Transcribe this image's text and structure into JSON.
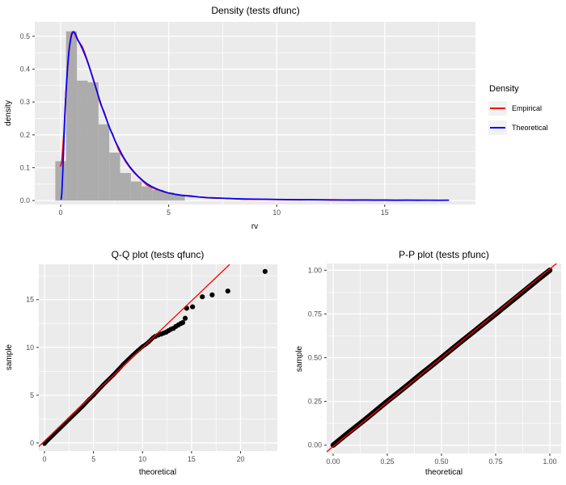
{
  "figure": {
    "background": "#FFFFFF",
    "panel_fill": "#EBEBEB",
    "grid_color": "#FFFFFF",
    "tick_text_color": "#4D4D4D",
    "tick_mark_color": "#333333",
    "histogram_fill": "#ACACAC",
    "point_color": "#000000",
    "empirical_color": "#FF0000",
    "theoretical_color": "#0000FF"
  },
  "legend": {
    "title": "Density",
    "entries": [
      {
        "label": "Empirical",
        "color": "#FF0000"
      },
      {
        "label": "Theoretical",
        "color": "#0000FF"
      }
    ]
  },
  "chart_data": [
    {
      "id": "density",
      "type": "area",
      "title": "Density (tests dfunc)",
      "xlabel": "rv",
      "ylabel": "density",
      "xlim": [
        -1.2,
        19.2
      ],
      "ylim": [
        -0.012,
        0.544
      ],
      "x_ticks": {
        "values": [
          0,
          5,
          10,
          15
        ],
        "labels": [
          "0",
          "5",
          "10",
          "15"
        ]
      },
      "y_ticks": {
        "values": [
          0.0,
          0.1,
          0.2,
          0.3,
          0.4,
          0.5
        ],
        "labels": [
          "0.0",
          "0.1",
          "0.2",
          "0.3",
          "0.4",
          "0.5"
        ]
      },
      "x_minor": [
        2.5,
        7.5,
        12.5,
        17.5
      ],
      "y_minor": [
        0.05,
        0.15,
        0.25,
        0.35,
        0.45
      ],
      "grid": true,
      "legend_position": "right",
      "histogram": {
        "bin_width": 0.5,
        "centers": [
          0,
          0.5,
          1.0,
          1.5,
          2.0,
          2.5,
          3.0,
          3.5,
          4.0,
          4.5,
          5.0,
          5.5
        ],
        "heights": [
          0.12,
          0.515,
          0.365,
          0.36,
          0.232,
          0.146,
          0.084,
          0.058,
          0.043,
          0.033,
          0.025,
          0.018
        ]
      },
      "series": [
        {
          "name": "Empirical",
          "color": "#FF0000",
          "points": [
            [
              0,
              0.105
            ],
            [
              0.05,
              0.12
            ],
            [
              0.1,
              0.16
            ],
            [
              0.15,
              0.21
            ],
            [
              0.2,
              0.275
            ],
            [
              0.25,
              0.33
            ],
            [
              0.3,
              0.385
            ],
            [
              0.35,
              0.43
            ],
            [
              0.4,
              0.465
            ],
            [
              0.45,
              0.49
            ],
            [
              0.5,
              0.507
            ],
            [
              0.55,
              0.514
            ],
            [
              0.6,
              0.513
            ],
            [
              0.65,
              0.508
            ],
            [
              0.7,
              0.5
            ],
            [
              0.8,
              0.487
            ],
            [
              0.9,
              0.478
            ],
            [
              1.0,
              0.468
            ],
            [
              1.1,
              0.452
            ],
            [
              1.2,
              0.433
            ],
            [
              1.3,
              0.413
            ],
            [
              1.4,
              0.392
            ],
            [
              1.5,
              0.372
            ],
            [
              1.6,
              0.35
            ],
            [
              1.7,
              0.327
            ],
            [
              1.8,
              0.303
            ],
            [
              1.9,
              0.285
            ],
            [
              2.0,
              0.272
            ],
            [
              2.1,
              0.252
            ],
            [
              2.2,
              0.232
            ],
            [
              2.3,
              0.215
            ],
            [
              2.4,
              0.203
            ],
            [
              2.5,
              0.185
            ],
            [
              2.6,
              0.169
            ],
            [
              2.7,
              0.153
            ],
            [
              2.8,
              0.141
            ],
            [
              2.9,
              0.131
            ],
            [
              3.0,
              0.119
            ],
            [
              3.2,
              0.101
            ],
            [
              3.4,
              0.085
            ],
            [
              3.6,
              0.072
            ],
            [
              3.8,
              0.059
            ],
            [
              4.0,
              0.047
            ],
            [
              4.2,
              0.041
            ],
            [
              4.4,
              0.035
            ],
            [
              4.6,
              0.031
            ],
            [
              4.8,
              0.026
            ],
            [
              5.0,
              0.023
            ],
            [
              5.3,
              0.019
            ],
            [
              5.6,
              0.016
            ],
            [
              6.0,
              0.0145
            ],
            [
              6.4,
              0.011
            ],
            [
              6.8,
              0.0085
            ],
            [
              7.2,
              0.0075
            ],
            [
              7.6,
              0.007
            ],
            [
              8.0,
              0.0055
            ],
            [
              8.5,
              0.004
            ],
            [
              9.0,
              0.0035
            ],
            [
              9.5,
              0.0035
            ],
            [
              10.0,
              0.003
            ],
            [
              10.5,
              0.0022
            ],
            [
              11.0,
              0.002
            ],
            [
              11.5,
              0.0025
            ],
            [
              12.0,
              0.002
            ],
            [
              12.5,
              0.0015
            ],
            [
              13.0,
              0.0018
            ],
            [
              13.5,
              0.0012
            ],
            [
              14.0,
              0.0018
            ],
            [
              14.5,
              0.001
            ],
            [
              15.0,
              0.0012
            ],
            [
              15.5,
              0.0008
            ],
            [
              16.0,
              0.0012
            ],
            [
              16.5,
              0.0007
            ],
            [
              17.0,
              0.001
            ],
            [
              17.5,
              0.0008
            ],
            [
              17.95,
              0.001
            ]
          ]
        },
        {
          "name": "Theoretical",
          "color": "#0000FF",
          "points": [
            [
              0.02,
              0.004
            ],
            [
              0.05,
              0.02
            ],
            [
              0.1,
              0.09
            ],
            [
              0.15,
              0.185
            ],
            [
              0.2,
              0.27
            ],
            [
              0.25,
              0.335
            ],
            [
              0.3,
              0.39
            ],
            [
              0.35,
              0.432
            ],
            [
              0.4,
              0.463
            ],
            [
              0.45,
              0.487
            ],
            [
              0.5,
              0.503
            ],
            [
              0.55,
              0.512
            ],
            [
              0.6,
              0.514
            ],
            [
              0.65,
              0.511
            ],
            [
              0.7,
              0.504
            ],
            [
              0.8,
              0.489
            ],
            [
              0.9,
              0.476
            ],
            [
              1.0,
              0.462
            ],
            [
              1.1,
              0.447
            ],
            [
              1.2,
              0.43
            ],
            [
              1.3,
              0.411
            ],
            [
              1.4,
              0.391
            ],
            [
              1.5,
              0.37
            ],
            [
              1.6,
              0.349
            ],
            [
              1.7,
              0.328
            ],
            [
              1.8,
              0.307
            ],
            [
              1.9,
              0.287
            ],
            [
              2.0,
              0.268
            ],
            [
              2.1,
              0.25
            ],
            [
              2.2,
              0.233
            ],
            [
              2.3,
              0.216
            ],
            [
              2.4,
              0.2
            ],
            [
              2.5,
              0.185
            ],
            [
              2.6,
              0.171
            ],
            [
              2.7,
              0.158
            ],
            [
              2.8,
              0.145
            ],
            [
              2.9,
              0.133
            ],
            [
              3.0,
              0.122
            ],
            [
              3.2,
              0.103
            ],
            [
              3.4,
              0.087
            ],
            [
              3.6,
              0.073
            ],
            [
              3.8,
              0.061
            ],
            [
              4.0,
              0.051
            ],
            [
              4.2,
              0.043
            ],
            [
              4.4,
              0.037
            ],
            [
              4.6,
              0.031
            ],
            [
              4.8,
              0.027
            ],
            [
              5.0,
              0.023
            ],
            [
              5.3,
              0.019
            ],
            [
              5.6,
              0.016
            ],
            [
              6.0,
              0.013
            ],
            [
              6.4,
              0.011
            ],
            [
              6.8,
              0.009
            ],
            [
              7.2,
              0.008
            ],
            [
              7.6,
              0.007
            ],
            [
              8.0,
              0.006
            ],
            [
              8.5,
              0.005
            ],
            [
              9.0,
              0.0045
            ],
            [
              9.5,
              0.004
            ],
            [
              10.0,
              0.0035
            ],
            [
              10.5,
              0.003
            ],
            [
              11.0,
              0.0028
            ],
            [
              11.5,
              0.0026
            ],
            [
              12.0,
              0.0024
            ],
            [
              12.5,
              0.0022
            ],
            [
              13.0,
              0.002
            ],
            [
              13.5,
              0.0018
            ],
            [
              14.0,
              0.0017
            ],
            [
              14.5,
              0.0016
            ],
            [
              15.0,
              0.0015
            ],
            [
              15.5,
              0.0014
            ],
            [
              16.0,
              0.0013
            ],
            [
              16.5,
              0.0012
            ],
            [
              17.0,
              0.0011
            ],
            [
              17.5,
              0.001
            ],
            [
              17.95,
              0.001
            ]
          ]
        }
      ]
    },
    {
      "id": "qq",
      "type": "scatter",
      "title": "Q-Q plot (tests qfunc)",
      "xlabel": "theoretical",
      "ylabel": "sample",
      "xlim": [
        -0.58,
        23.75
      ],
      "ylim": [
        -0.85,
        18.7
      ],
      "x_ticks": {
        "values": [
          0,
          5,
          10,
          15,
          20
        ],
        "labels": [
          "0",
          "5",
          "10",
          "15",
          "20"
        ]
      },
      "y_ticks": {
        "values": [
          0,
          5,
          10,
          15
        ],
        "labels": [
          "0",
          "5",
          "10",
          "15"
        ]
      },
      "x_minor": [
        2.5,
        7.5,
        12.5,
        17.5,
        22.5
      ],
      "y_minor": [
        2.5,
        7.5,
        12.5,
        17.5
      ],
      "grid": true,
      "dense_points": [
        [
          0,
          -0.1
        ],
        [
          0.3,
          0.25
        ],
        [
          0.6,
          0.55
        ],
        [
          1,
          0.95
        ],
        [
          1.5,
          1.45
        ],
        [
          2,
          1.95
        ],
        [
          2.5,
          2.45
        ],
        [
          3,
          2.95
        ],
        [
          3.5,
          3.45
        ],
        [
          4,
          3.95
        ],
        [
          4.5,
          4.5
        ],
        [
          5,
          5.0
        ],
        [
          5.5,
          5.55
        ],
        [
          6,
          6.1
        ],
        [
          6.5,
          6.6
        ],
        [
          7,
          7.1
        ],
        [
          7.5,
          7.65
        ],
        [
          8,
          8.2
        ],
        [
          8.5,
          8.7
        ],
        [
          9,
          9.2
        ],
        [
          9.5,
          9.65
        ],
        [
          10,
          10.1
        ],
        [
          10.3,
          10.3
        ],
        [
          10.6,
          10.55
        ],
        [
          10.9,
          10.85
        ],
        [
          11.1,
          11.05
        ]
      ],
      "outlier_points": [
        [
          11.3,
          11.15
        ],
        [
          11.6,
          11.3
        ],
        [
          11.9,
          11.4
        ],
        [
          12.15,
          11.5
        ],
        [
          12.4,
          11.6
        ],
        [
          12.65,
          11.75
        ],
        [
          12.9,
          11.9
        ],
        [
          13.15,
          12.0
        ],
        [
          13.4,
          12.2
        ],
        [
          13.65,
          12.35
        ],
        [
          13.9,
          12.5
        ],
        [
          14.1,
          12.6
        ],
        [
          14.35,
          13.05
        ],
        [
          14.5,
          14.1
        ],
        [
          15.1,
          14.25
        ],
        [
          16.1,
          15.3
        ],
        [
          17.1,
          15.5
        ],
        [
          18.7,
          15.9
        ],
        [
          22.5,
          17.95
        ]
      ],
      "ref_line": {
        "color": "#FF0000",
        "from": [
          -1.1,
          -0.88
        ],
        "to": [
          18.9,
          18.7
        ]
      }
    },
    {
      "id": "pp",
      "type": "scatter",
      "title": "P-P plot (tests pfunc)",
      "xlabel": "theoretical",
      "ylabel": "sample",
      "xlim": [
        -0.0299,
        1.0522
      ],
      "ylim": [
        -0.0476,
        1.0384
      ],
      "x_ticks": {
        "values": [
          0,
          0.25,
          0.5,
          0.75,
          1.0
        ],
        "labels": [
          "0.00",
          "0.25",
          "0.50",
          "0.75",
          "1.00"
        ]
      },
      "y_ticks": {
        "values": [
          0,
          0.25,
          0.5,
          0.75,
          1.0
        ],
        "labels": [
          "0.00",
          "0.25",
          "0.50",
          "0.75",
          "1.00"
        ]
      },
      "x_minor": [
        0.125,
        0.375,
        0.625,
        0.875
      ],
      "y_minor": [
        0.125,
        0.375,
        0.625,
        0.875
      ],
      "grid": true,
      "dense_points": [
        [
          0,
          0
        ],
        [
          0.05,
          0.051
        ],
        [
          0.1,
          0.1
        ],
        [
          0.15,
          0.149
        ],
        [
          0.2,
          0.2
        ],
        [
          0.25,
          0.251
        ],
        [
          0.3,
          0.3
        ],
        [
          0.35,
          0.35
        ],
        [
          0.4,
          0.401
        ],
        [
          0.45,
          0.45
        ],
        [
          0.5,
          0.5
        ],
        [
          0.55,
          0.551
        ],
        [
          0.6,
          0.601
        ],
        [
          0.65,
          0.65
        ],
        [
          0.7,
          0.7
        ],
        [
          0.75,
          0.749
        ],
        [
          0.8,
          0.8
        ],
        [
          0.85,
          0.85
        ],
        [
          0.9,
          0.9
        ],
        [
          0.95,
          0.951
        ],
        [
          1.0,
          1.0
        ]
      ],
      "ref_line": {
        "color": "#FF0000",
        "from": [
          -0.03,
          -0.038
        ],
        "to": [
          1.04,
          1.048
        ]
      }
    }
  ]
}
